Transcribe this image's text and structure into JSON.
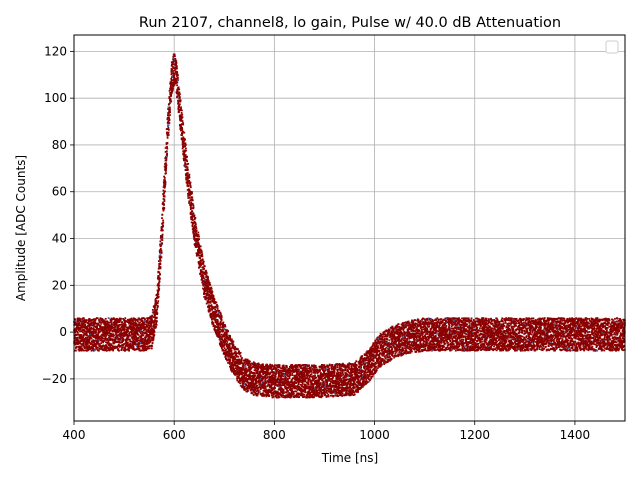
{
  "chart_data": {
    "type": "scatter",
    "title": "Run 2107, channel8, lo gain, Pulse w/ 40.0 dB Attenuation",
    "xlabel": "Time [ns]",
    "ylabel": "Amplitude [ADC Counts]",
    "xlim": [
      400,
      1500
    ],
    "ylim": [
      -38,
      127
    ],
    "xticks": [
      400,
      600,
      800,
      1000,
      1200,
      1400
    ],
    "yticks": [
      -20,
      0,
      20,
      40,
      60,
      80,
      100,
      120
    ],
    "grid": true,
    "legend": "top-right (empty)",
    "colors": {
      "points": "#8b0000",
      "outliers": "#4a5fa8",
      "grid": "#b0b0b0"
    },
    "pulse_envelope": {
      "x": [
        400,
        540,
        555,
        565,
        575,
        585,
        595,
        600,
        605,
        615,
        625,
        640,
        660,
        680,
        700,
        720,
        740,
        760,
        800,
        900,
        960,
        990,
        1010,
        1040,
        1070,
        1100,
        1200,
        1500
      ],
      "y_mid": [
        -1,
        -1,
        0,
        10,
        40,
        80,
        108,
        113,
        108,
        88,
        70,
        45,
        22,
        8,
        -3,
        -12,
        -18,
        -20,
        -21,
        -21,
        -20,
        -14,
        -8,
        -4,
        -2,
        -1,
        -1,
        -1
      ],
      "noise_halfwidth": 7
    }
  }
}
